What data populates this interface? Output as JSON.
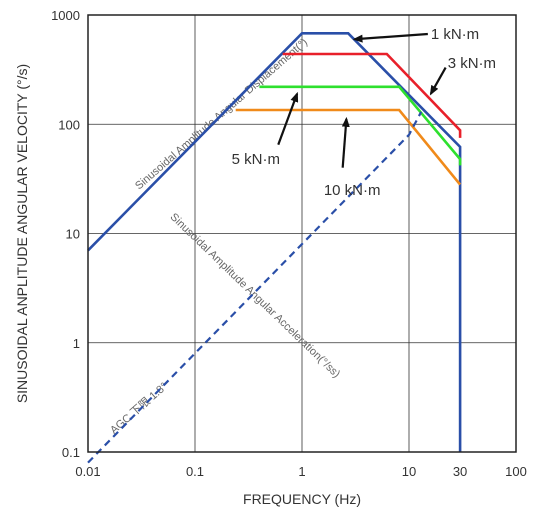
{
  "chart_data": {
    "type": "line",
    "xlabel": "FREQUENCY (Hz)",
    "ylabel": "SINUSOIDAL ANPLITUDE ANGULAR  VELOCITY (°/s)",
    "x_scale": "log",
    "y_scale": "log",
    "xlim": [
      0.01,
      100
    ],
    "ylim": [
      0.1,
      1000
    ],
    "grid": true,
    "x_ticks": [
      {
        "value": 0.01,
        "label": "0.01"
      },
      {
        "value": 0.1,
        "label": "0.1"
      },
      {
        "value": 1,
        "label": "1"
      },
      {
        "value": 10,
        "label": "10"
      },
      {
        "value": 30,
        "label": "30"
      },
      {
        "value": 100,
        "label": "100"
      }
    ],
    "y_ticks": [
      {
        "value": 0.1,
        "label": "0.1"
      },
      {
        "value": 1,
        "label": "1"
      },
      {
        "value": 10,
        "label": "10"
      },
      {
        "value": 100,
        "label": "100"
      },
      {
        "value": 1000,
        "label": "1000"
      }
    ],
    "series": [
      {
        "name": "1 kN·m",
        "color": "#2a4fa8",
        "dashed": false,
        "points": [
          [
            0.01,
            7
          ],
          [
            1,
            680
          ],
          [
            2.7,
            680
          ],
          [
            30,
            62
          ],
          [
            30,
            0.1
          ]
        ]
      },
      {
        "name": "3 kN·m",
        "color": "#e8202a",
        "dashed": false,
        "points": [
          [
            0.66,
            440
          ],
          [
            6.2,
            440
          ],
          [
            30,
            88
          ],
          [
            30,
            75
          ]
        ]
      },
      {
        "name": "5 kN·m",
        "color": "#2ee02e",
        "dashed": false,
        "points": [
          [
            0.4,
            220
          ],
          [
            8.1,
            220
          ],
          [
            30,
            48
          ],
          [
            30,
            42
          ]
        ]
      },
      {
        "name": "10 kN·m",
        "color": "#f08a1a",
        "dashed": false,
        "points": [
          [
            0.24,
            135
          ],
          [
            8.1,
            135
          ],
          [
            30,
            28
          ]
        ]
      },
      {
        "name": "AGC 下限  1.8°",
        "color": "#2a4fa8",
        "dashed": true,
        "points": [
          [
            0.01,
            0.08
          ],
          [
            10,
            80
          ],
          [
            13,
            130
          ]
        ]
      }
    ],
    "annotations": [
      {
        "text": "Sinusoidal Amplitude Angular Displacement(°)",
        "kind": "diagonal"
      },
      {
        "text": "Sinusoidal Amplitude Angular Acceleration(°/ss)",
        "kind": "diagonal"
      },
      {
        "text": "AGC 下限  1.8°",
        "kind": "diagonal"
      }
    ],
    "labels": [
      {
        "text": "1 kN·m",
        "series": "1 kN·m"
      },
      {
        "text": "3 kN·m",
        "series": "3 kN·m"
      },
      {
        "text": "5 kN·m",
        "series": "5 kN·m"
      },
      {
        "text": "10 kN·m",
        "series": "10 kN·m"
      }
    ]
  }
}
